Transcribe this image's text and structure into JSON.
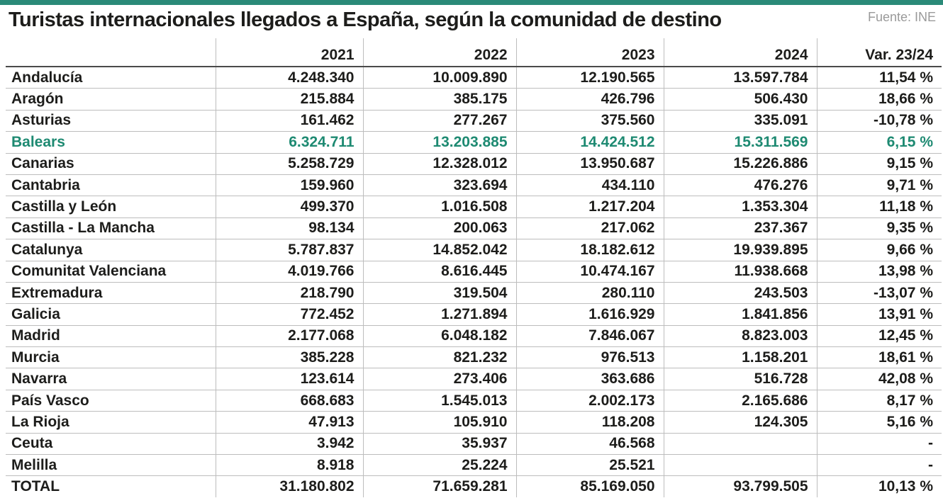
{
  "title": "Turistas internacionales llegados a España, según la comunidad de destino",
  "source": "Fuente: INE",
  "colors": {
    "accent": "#2a8a78",
    "highlight_row": "#1e8a72",
    "text": "#1d1d1b"
  },
  "chart_data": {
    "type": "table",
    "title": "Turistas internacionales llegados a España, según la comunidad de destino",
    "columns": [
      "",
      "2021",
      "2022",
      "2023",
      "2024",
      "Var. 23/24"
    ],
    "highlighted_row": "Balears",
    "rows": [
      [
        "Andalucía",
        "4.248.340",
        "10.009.890",
        "12.190.565",
        "13.597.784",
        "11,54 %"
      ],
      [
        "Aragón",
        "215.884",
        "385.175",
        "426.796",
        "506.430",
        "18,66 %"
      ],
      [
        "Asturias",
        "161.462",
        "277.267",
        "375.560",
        "335.091",
        "-10,78 %"
      ],
      [
        "Balears",
        "6.324.711",
        "13.203.885",
        "14.424.512",
        "15.311.569",
        "6,15 %"
      ],
      [
        "Canarias",
        "5.258.729",
        "12.328.012",
        "13.950.687",
        "15.226.886",
        "9,15 %"
      ],
      [
        "Cantabria",
        "159.960",
        "323.694",
        "434.110",
        "476.276",
        "9,71 %"
      ],
      [
        "Castilla y León",
        "499.370",
        "1.016.508",
        "1.217.204",
        "1.353.304",
        "11,18 %"
      ],
      [
        "Castilla - La Mancha",
        "98.134",
        "200.063",
        "217.062",
        "237.367",
        "9,35 %"
      ],
      [
        "Catalunya",
        "5.787.837",
        "14.852.042",
        "18.182.612",
        "19.939.895",
        "9,66 %"
      ],
      [
        "Comunitat Valenciana",
        "4.019.766",
        "8.616.445",
        "10.474.167",
        "11.938.668",
        "13,98 %"
      ],
      [
        "Extremadura",
        "218.790",
        "319.504",
        "280.110",
        "243.503",
        "-13,07 %"
      ],
      [
        "Galicia",
        "772.452",
        "1.271.894",
        "1.616.929",
        "1.841.856",
        "13,91 %"
      ],
      [
        "Madrid",
        "2.177.068",
        "6.048.182",
        "7.846.067",
        "8.823.003",
        "12,45 %"
      ],
      [
        "Murcia",
        "385.228",
        "821.232",
        "976.513",
        "1.158.201",
        "18,61 %"
      ],
      [
        "Navarra",
        "123.614",
        "273.406",
        "363.686",
        "516.728",
        "42,08 %"
      ],
      [
        "País Vasco",
        "668.683",
        "1.545.013",
        "2.002.173",
        "2.165.686",
        "8,17 %"
      ],
      [
        "La Rioja",
        "47.913",
        "105.910",
        "118.208",
        "124.305",
        "5,16 %"
      ],
      [
        "Ceuta",
        "3.942",
        "35.937",
        "46.568",
        "",
        "-"
      ],
      [
        "Melilla",
        "8.918",
        "25.224",
        "25.521",
        "",
        "-"
      ],
      [
        "TOTAL",
        "31.180.802",
        "71.659.281",
        "85.169.050",
        "93.799.505",
        "10,13 %"
      ]
    ]
  }
}
